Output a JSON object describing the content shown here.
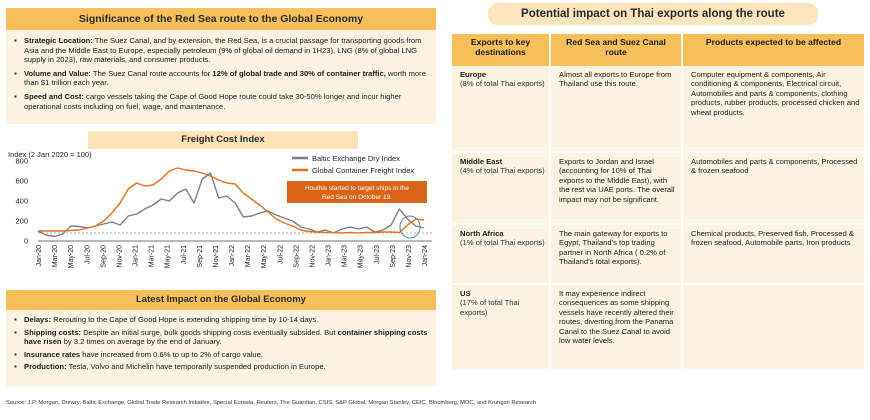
{
  "significance": {
    "title": "Significance of  the Red Sea route to the Global Economy",
    "items": [
      {
        "label": "Strategic Location:",
        "text": " The Suez Canal, and by extension, the Red Sea, is a crucial passage for transporting goods from Asia and the Middle East to Europe, especially petroleum (9% of global oil demand in 1H23), LNG (8% of global LNG supply in 2023), raw materials, and consumer products."
      },
      {
        "label": "Volume and Value:",
        "text": " The Suez Canal route accounts for ",
        "bold2": "12% of global trade and 30% of container traffic,",
        "text2": " worth more than $1 trillion each year."
      },
      {
        "label": "Speed and Cost:",
        "text": " cargo vessels taking the Cape of Good Hope route could take 30-50% longer and incur higher operational costs including on fuel, wage, and maintenance."
      }
    ]
  },
  "freight": {
    "title": "Freight Cost Index",
    "unit": "Index (2 Jan 2020 = 100)",
    "annotation_line1": "Houthis started to target ships in the",
    "annotation_line2": "Red Sea on October 19."
  },
  "chart_data": {
    "type": "line",
    "ylim": [
      0,
      800
    ],
    "yticks": [
      0,
      200,
      400,
      600,
      800
    ],
    "x_tick_labels": [
      "Jan-20",
      "Mar-20",
      "May-20",
      "Jul-20",
      "Sep-20",
      "Nov-20",
      "Jan-21",
      "Mar-21",
      "May-21",
      "Jul-21",
      "Sep-21",
      "Nov-21",
      "Jan-22",
      "Mar-22",
      "May-22",
      "Jul-22",
      "Sep-22",
      "Nov-22",
      "Jan-23",
      "Mar-23",
      "May-23",
      "Jul-23",
      "Sep-23",
      "Nov-23",
      "Jan-24"
    ],
    "series": [
      {
        "name": "Baltic Exchange Dry Index",
        "color": "#808080",
        "values": [
          100,
          60,
          45,
          70,
          150,
          145,
          130,
          150,
          170,
          190,
          160,
          250,
          270,
          320,
          360,
          420,
          400,
          480,
          520,
          380,
          620,
          680,
          430,
          450,
          380,
          240,
          250,
          280,
          300,
          260,
          230,
          200,
          140,
          120,
          90,
          110,
          80,
          120,
          140,
          120,
          140,
          90,
          110,
          160,
          320,
          220,
          150,
          130
        ]
      },
      {
        "name": "Global Container Freight Index",
        "color": "#e8701a",
        "values": [
          100,
          100,
          100,
          100,
          105,
          110,
          130,
          150,
          200,
          280,
          380,
          520,
          580,
          550,
          560,
          620,
          700,
          730,
          710,
          700,
          680,
          650,
          610,
          580,
          570,
          480,
          420,
          360,
          290,
          220,
          180,
          150,
          110,
          95,
          90,
          85,
          85,
          80,
          85,
          80,
          85,
          85,
          90,
          90,
          85,
          160,
          220,
          210
        ]
      }
    ],
    "grid": false,
    "legend": "top-right"
  },
  "latest": {
    "title": "Latest Impact on the Global Economy",
    "items": [
      {
        "label": "Delays:",
        "text": " Rerouting to the Cape of Good Hope is extending shipping time by 10-14 days."
      },
      {
        "label": "Shipping costs:",
        "text": " Despite an initial surge, bulk goods shipping costs eventually subsided. But ",
        "bold2": "container shipping costs have risen",
        "text2": " by 3.2 times on average by the end of January."
      },
      {
        "label": "Insurance rates",
        "text": " have increased from 0.6% to up to 2% of cargo value."
      },
      {
        "label": "Production:",
        "text": " Tesla, Volvo and Michelin have temporarily suspended production in Europe."
      }
    ]
  },
  "source": "Source: J.P. Morgan, Drewry, Baltic Exchange, Global Trade Research Initiative, Special Eurasia, Reuters, The Guardian, CSIS, S&P Global, Morgan Stanley, CEIC, Bloomberg, MOC, and Krungsri Research",
  "thai": {
    "title": "Potential impact on Thai exports along the route",
    "headers": [
      "Exports to key destinations",
      "Red Sea and Suez Canal route",
      "Products expected to be affected"
    ],
    "rows": [
      {
        "region": "Europe",
        "share": "(8% of total Thai exports)",
        "route": "Almost all exports to Europe from Thailand use this route.",
        "products": "Computer equipment & components, Air conditioning & components, Electrical circuit, Automobiles and parts & components, clothing products, rubber products, processed chicken  and wheat products."
      },
      {
        "region": "Middle East",
        "share": "(4% of total Thai exports)",
        "route": "Exports to Jordan and Israel (accounting for 10% of Thai exports to the Middle East), with the rest via UAE ports. The overall impact may not be significant.",
        "products": "Automobiles and parts & components, Processed & frozen seafood"
      },
      {
        "region": "North Africa",
        "share": "(1% of total Thai exports)",
        "route": "The main gateway for exports to Egypt, Thailand's top trading partner in North Africa ( 0.2% of Thailand's total exports).",
        "products": "Chemical products, Preserved fish, Processed & frozen seafood, Automobile parts, Iron products"
      },
      {
        "region": "US",
        "share": "(17% of total Thai exports)",
        "route": "It may experience indirect consequences as some shipping vessels have recently altered their routes, diverting from the Panama Canal to the Suez Canal to avoid low water levels.",
        "products": ""
      }
    ]
  }
}
